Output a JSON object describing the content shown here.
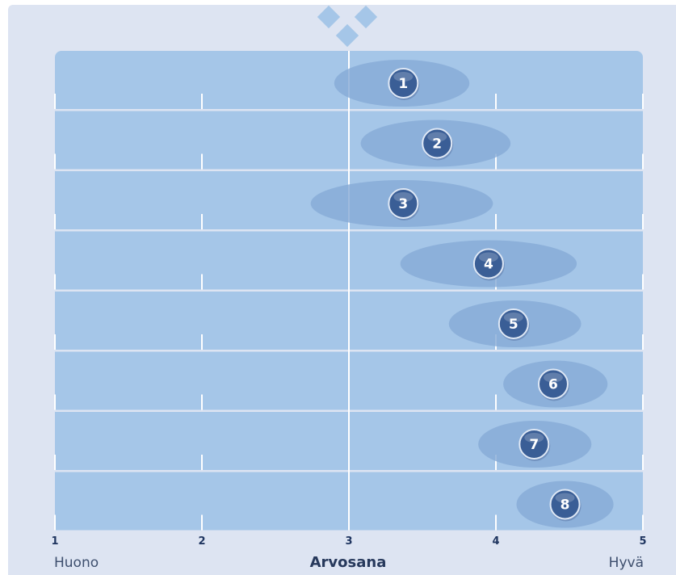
{
  "chart_data": {
    "type": "scatter",
    "x_axis": {
      "min": 1,
      "max": 5,
      "ticks": [
        "1",
        "2",
        "3",
        "4",
        "5"
      ],
      "title": "Arvosana",
      "low_label": "Huono",
      "high_label": "Hyvä"
    },
    "series": [
      {
        "label": "1",
        "value": 3.37,
        "spread": [
          2.9,
          3.82
        ]
      },
      {
        "label": "2",
        "value": 3.6,
        "spread": [
          3.08,
          4.1
        ]
      },
      {
        "label": "3",
        "value": 3.37,
        "spread": [
          2.74,
          3.98
        ]
      },
      {
        "label": "4",
        "value": 3.95,
        "spread": [
          3.35,
          4.55
        ]
      },
      {
        "label": "5",
        "value": 4.12,
        "spread": [
          3.68,
          4.58
        ]
      },
      {
        "label": "6",
        "value": 4.39,
        "spread": [
          4.05,
          4.76
        ]
      },
      {
        "label": "7",
        "value": 4.26,
        "spread": [
          3.88,
          4.65
        ]
      },
      {
        "label": "8",
        "value": 4.47,
        "spread": [
          4.14,
          4.8
        ]
      }
    ],
    "grid": true
  },
  "colors": {
    "background": "#dde4f2",
    "row_fill": "#a5c6e8",
    "spread_fill": "#86aad6",
    "marker_fill": "#3a5e96",
    "gridline": "#ffffff"
  }
}
